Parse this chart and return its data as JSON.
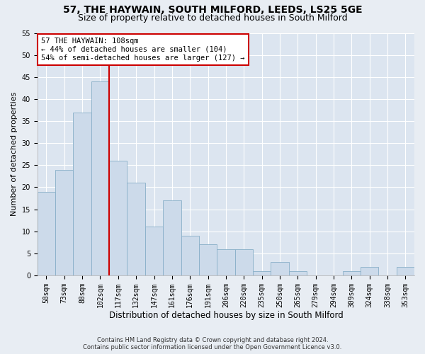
{
  "title1": "57, THE HAYWAIN, SOUTH MILFORD, LEEDS, LS25 5GE",
  "title2": "Size of property relative to detached houses in South Milford",
  "xlabel": "Distribution of detached houses by size in South Milford",
  "ylabel": "Number of detached properties",
  "footnote1": "Contains HM Land Registry data © Crown copyright and database right 2024.",
  "footnote2": "Contains public sector information licensed under the Open Government Licence v3.0.",
  "bar_labels": [
    "58sqm",
    "73sqm",
    "88sqm",
    "102sqm",
    "117sqm",
    "132sqm",
    "147sqm",
    "161sqm",
    "176sqm",
    "191sqm",
    "206sqm",
    "220sqm",
    "235sqm",
    "250sqm",
    "265sqm",
    "279sqm",
    "294sqm",
    "309sqm",
    "324sqm",
    "338sqm",
    "353sqm"
  ],
  "bar_values": [
    19,
    24,
    37,
    44,
    26,
    21,
    11,
    17,
    9,
    7,
    6,
    6,
    1,
    3,
    1,
    0,
    0,
    1,
    2,
    0,
    2
  ],
  "bar_color": "#ccdaea",
  "bar_edge_color": "#88aec8",
  "vline_color": "#cc0000",
  "annotation_text": "57 THE HAYWAIN: 108sqm\n← 44% of detached houses are smaller (104)\n54% of semi-detached houses are larger (127) →",
  "annotation_box_color": "white",
  "annotation_box_edge": "#cc0000",
  "ylim": [
    0,
    55
  ],
  "yticks": [
    0,
    5,
    10,
    15,
    20,
    25,
    30,
    35,
    40,
    45,
    50,
    55
  ],
  "background_color": "#e8edf3",
  "plot_background": "#dce5f0",
  "grid_color": "white",
  "title_fontsize": 10,
  "subtitle_fontsize": 9,
  "ylabel_fontsize": 8,
  "xlabel_fontsize": 8.5,
  "tick_fontsize": 7,
  "annot_fontsize": 7.5,
  "footnote_fontsize": 6
}
